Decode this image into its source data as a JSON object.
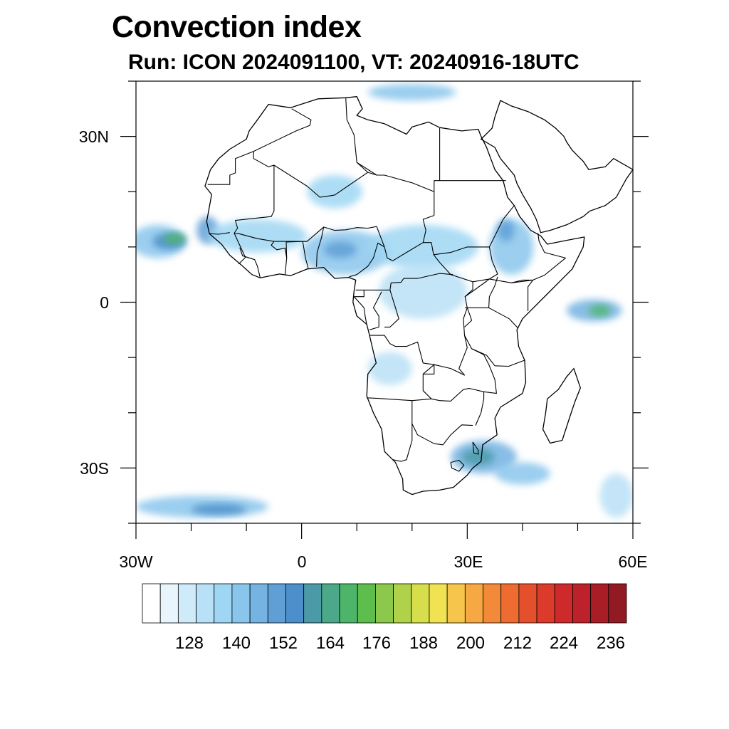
{
  "title": "Convection index",
  "subtitle": "Run: ICON 2024091100,  VT: 20240916-18UTC",
  "axes": {
    "lon_range": [
      -30,
      60
    ],
    "lat_range": [
      -40,
      40
    ],
    "x_ticks": [
      {
        "value": -30,
        "label": "30W"
      },
      {
        "value": 0,
        "label": "0"
      },
      {
        "value": 30,
        "label": "30E"
      },
      {
        "value": 60,
        "label": "60E"
      }
    ],
    "y_ticks": [
      {
        "value": 30,
        "label": "30N"
      },
      {
        "value": 0,
        "label": "0"
      },
      {
        "value": -30,
        "label": "30S"
      }
    ],
    "minor_step_deg": 10
  },
  "colorbar": {
    "min": 116,
    "step": 4,
    "colors": [
      "#ffffff",
      "#e8f5fc",
      "#cfeaf8",
      "#b8e0f6",
      "#9fd6f3",
      "#8ac6ec",
      "#74b3e2",
      "#5f9fd6",
      "#4d8fca",
      "#4b9aa8",
      "#4ba98a",
      "#4db56a",
      "#5dbe4e",
      "#8cc84c",
      "#b0d24a",
      "#d6de4c",
      "#f0e250",
      "#f6c64c",
      "#f6a843",
      "#f28a3a",
      "#ee6c32",
      "#e5502c",
      "#dc3a2b",
      "#cf2a2b",
      "#bd222a",
      "#a81d26",
      "#921a22"
    ],
    "label_values": [
      128,
      140,
      152,
      164,
      176,
      188,
      200,
      212,
      224,
      236
    ],
    "labels": [
      "128",
      "140",
      "152",
      "164",
      "176",
      "188",
      "200",
      "212",
      "224",
      "236"
    ]
  },
  "field_blobs": [
    {
      "name": "atlantic-itcz-west",
      "lon": -26,
      "lat": 11,
      "rlon": 5,
      "rlat": 3,
      "level": 3
    },
    {
      "name": "atlantic-core",
      "lon": -24,
      "lat": 11,
      "rlon": 3,
      "rlat": 1.5,
      "level": 6
    },
    {
      "name": "atlantic-hot",
      "lon": -23,
      "lat": 11.5,
      "rlon": 2,
      "rlat": 1,
      "level": 9
    },
    {
      "name": "senegal-coast",
      "lon": -17,
      "lat": 13,
      "rlon": 2,
      "rlat": 2.5,
      "level": 5
    },
    {
      "name": "sahel-west",
      "lon": -8,
      "lat": 12,
      "rlon": 9,
      "rlat": 3,
      "level": 2
    },
    {
      "name": "sahel-central",
      "lon": 8,
      "lat": 9,
      "rlon": 8,
      "rlat": 4,
      "level": 3
    },
    {
      "name": "nigeria-core",
      "lon": 7,
      "lat": 9.5,
      "rlon": 3,
      "rlat": 1.5,
      "level": 5
    },
    {
      "name": "chad-sudan",
      "lon": 22,
      "lat": 10,
      "rlon": 10,
      "rlat": 4,
      "level": 2
    },
    {
      "name": "ethiopia",
      "lon": 38,
      "lat": 10,
      "rlon": 4,
      "rlat": 5,
      "level": 3
    },
    {
      "name": "ethiopia-core",
      "lon": 37,
      "lat": 13,
      "rlon": 1.5,
      "rlat": 2,
      "level": 5
    },
    {
      "name": "congo",
      "lon": 22,
      "lat": 2,
      "rlon": 8,
      "rlat": 5,
      "level": 1
    },
    {
      "name": "niger-north",
      "lon": 6,
      "lat": 20,
      "rlon": 5,
      "rlat": 3,
      "level": 2
    },
    {
      "name": "indian-ocean",
      "lon": 53,
      "lat": -1.5,
      "rlon": 5,
      "rlat": 2,
      "level": 4
    },
    {
      "name": "indian-ocean-core",
      "lon": 54,
      "lat": -1.5,
      "rlon": 2,
      "rlat": 1,
      "level": 9
    },
    {
      "name": "southern-band",
      "lon": 33,
      "lat": -28,
      "rlon": 6,
      "rlat": 3,
      "level": 4
    },
    {
      "name": "southern-band-core",
      "lon": 32,
      "lat": -28,
      "rlon": 3,
      "rlat": 1.5,
      "level": 7
    },
    {
      "name": "southern-band-east",
      "lon": 40,
      "lat": -31,
      "rlon": 5,
      "rlat": 2,
      "level": 3
    },
    {
      "name": "south-atlantic-front",
      "lon": -18,
      "lat": -37,
      "rlon": 12,
      "rlat": 2,
      "level": 3
    },
    {
      "name": "south-atlantic-core",
      "lon": -15,
      "lat": -37.5,
      "rlon": 5,
      "rlat": 1,
      "level": 6
    },
    {
      "name": "mediterranean",
      "lon": 20,
      "lat": 38,
      "rlon": 8,
      "rlat": 1.5,
      "level": 3
    },
    {
      "name": "angola",
      "lon": 16,
      "lat": -12,
      "rlon": 4,
      "rlat": 3,
      "level": 1
    },
    {
      "name": "far-southeast",
      "lon": 57,
      "lat": -35,
      "rlon": 3,
      "rlat": 4,
      "level": 1
    }
  ],
  "coastline": [
    [
      -17.5,
      21
    ],
    [
      -16.5,
      24
    ],
    [
      -15,
      26
    ],
    [
      -13,
      27.7
    ],
    [
      -10,
      29.5
    ],
    [
      -9.5,
      31
    ],
    [
      -8,
      33
    ],
    [
      -6,
      35.8
    ],
    [
      -2,
      35.2
    ],
    [
      3,
      36.8
    ],
    [
      8,
      37
    ],
    [
      10,
      37.2
    ],
    [
      11,
      35
    ],
    [
      10,
      33.8
    ],
    [
      12,
      33
    ],
    [
      15,
      32.3
    ],
    [
      19,
      30.4
    ],
    [
      20,
      31.7
    ],
    [
      23,
      32.6
    ],
    [
      25,
      31.6
    ],
    [
      29,
      31
    ],
    [
      32,
      31.3
    ],
    [
      32.5,
      30
    ],
    [
      33.5,
      28
    ],
    [
      35,
      24
    ],
    [
      36.5,
      22
    ],
    [
      37.3,
      19
    ],
    [
      38.5,
      17.5
    ],
    [
      39.5,
      15.5
    ],
    [
      41.5,
      13
    ],
    [
      43.3,
      12
    ],
    [
      44.5,
      10.5
    ],
    [
      48,
      11.2
    ],
    [
      51.2,
      11.8
    ],
    [
      51,
      10
    ],
    [
      49,
      6
    ],
    [
      47,
      4
    ],
    [
      45,
      2
    ],
    [
      42,
      -1
    ],
    [
      40,
      -3
    ],
    [
      39,
      -5
    ],
    [
      39.3,
      -8
    ],
    [
      40.4,
      -10.5
    ],
    [
      40.6,
      -14.5
    ],
    [
      40,
      -16.5
    ],
    [
      36,
      -19
    ],
    [
      35,
      -21
    ],
    [
      35.4,
      -24
    ],
    [
      32.8,
      -25.8
    ],
    [
      32.5,
      -28.8
    ],
    [
      31,
      -30
    ],
    [
      30,
      -31.3
    ],
    [
      27.5,
      -33.5
    ],
    [
      25,
      -34
    ],
    [
      22,
      -34.2
    ],
    [
      20,
      -34.8
    ],
    [
      18.4,
      -34
    ],
    [
      18.3,
      -32
    ],
    [
      17,
      -29
    ],
    [
      15,
      -27
    ],
    [
      14.5,
      -23
    ],
    [
      13,
      -20
    ],
    [
      11.8,
      -17
    ],
    [
      12,
      -13
    ],
    [
      13.5,
      -11
    ],
    [
      13,
      -9
    ],
    [
      12.3,
      -6
    ],
    [
      11.8,
      -4
    ],
    [
      10,
      -2.5
    ],
    [
      9.3,
      0
    ],
    [
      9.5,
      2
    ],
    [
      9.8,
      4
    ],
    [
      8.5,
      4.5
    ],
    [
      6,
      4.3
    ],
    [
      4,
      6.3
    ],
    [
      1,
      6
    ],
    [
      -2,
      4.8
    ],
    [
      -4,
      5.1
    ],
    [
      -7.5,
      4.4
    ],
    [
      -9,
      5
    ],
    [
      -11,
      6.8
    ],
    [
      -13,
      8.5
    ],
    [
      -14.5,
      10.5
    ],
    [
      -16.7,
      12.4
    ],
    [
      -17.2,
      14.6
    ],
    [
      -16.3,
      19.5
    ],
    [
      -17.5,
      21
    ]
  ],
  "madagascar": [
    [
      49.3,
      -12
    ],
    [
      50.5,
      -15.5
    ],
    [
      49.5,
      -18
    ],
    [
      48.5,
      -21
    ],
    [
      47.2,
      -25
    ],
    [
      45,
      -25.5
    ],
    [
      43.7,
      -23
    ],
    [
      44.2,
      -20
    ],
    [
      44.5,
      -17.5
    ],
    [
      46.5,
      -15.8
    ],
    [
      48,
      -13.5
    ],
    [
      49.3,
      -12
    ]
  ],
  "arabia": [
    [
      32.5,
      29.5
    ],
    [
      35,
      28
    ],
    [
      36,
      26
    ],
    [
      38.5,
      23
    ],
    [
      39,
      21.5
    ],
    [
      40,
      19.5
    ],
    [
      41.5,
      17
    ],
    [
      42.5,
      15
    ],
    [
      43.3,
      12.6
    ],
    [
      45,
      13
    ],
    [
      48,
      14
    ],
    [
      51,
      15.5
    ],
    [
      52.2,
      16.5
    ],
    [
      55,
      17.5
    ],
    [
      57,
      19
    ],
    [
      58.8,
      22.3
    ],
    [
      60,
      24
    ],
    [
      56.5,
      26
    ],
    [
      55,
      24.5
    ],
    [
      52,
      24
    ],
    [
      51,
      25.5
    ],
    [
      50,
      26.5
    ],
    [
      49,
      27.5
    ],
    [
      48,
      29
    ],
    [
      47.5,
      30
    ],
    [
      46,
      31.5
    ],
    [
      44,
      33
    ],
    [
      41,
      34.5
    ],
    [
      38,
      35.5
    ],
    [
      36,
      36.5
    ],
    [
      35,
      33.5
    ],
    [
      34.5,
      31.5
    ],
    [
      34,
      31
    ],
    [
      32.5,
      29.5
    ]
  ],
  "borders": [
    [
      [
        -17,
        21.3
      ],
      [
        -13,
        21.3
      ],
      [
        -13,
        23
      ],
      [
        -12,
        23.4
      ],
      [
        -12,
        26
      ],
      [
        -8.7,
        27.3
      ]
    ],
    [
      [
        -8.7,
        27.3
      ],
      [
        -8.7,
        26
      ],
      [
        -6,
        24.5
      ],
      [
        -5,
        24.8
      ],
      [
        -5,
        16.5
      ],
      [
        -5.5,
        15.5
      ],
      [
        -12,
        14.8
      ],
      [
        -11.6,
        13.4
      ],
      [
        -12.2,
        12.5
      ]
    ],
    [
      [
        -8.7,
        27.3
      ],
      [
        -1,
        31
      ],
      [
        1.5,
        32
      ],
      [
        1.7,
        33
      ],
      [
        -1.8,
        35
      ]
    ],
    [
      [
        -5,
        24.8
      ],
      [
        1,
        21
      ],
      [
        3.3,
        19
      ],
      [
        4.2,
        19.1
      ],
      [
        6,
        19.4
      ],
      [
        12,
        23.5
      ],
      [
        13.6,
        23
      ]
    ],
    [
      [
        8,
        37
      ],
      [
        8.2,
        33
      ],
      [
        9.5,
        30.3
      ],
      [
        10,
        25.3
      ],
      [
        12,
        23.5
      ]
    ],
    [
      [
        10,
        25.3
      ],
      [
        13.6,
        23
      ],
      [
        15,
        23
      ],
      [
        20,
        21.6
      ],
      [
        24,
        20
      ],
      [
        24,
        15.7
      ]
    ],
    [
      [
        24,
        20
      ],
      [
        24,
        22
      ],
      [
        25,
        22
      ],
      [
        31.5,
        22
      ],
      [
        37,
        22
      ]
    ],
    [
      [
        25,
        22
      ],
      [
        25,
        31.5
      ]
    ],
    [
      [
        -12.2,
        12.5
      ],
      [
        -11.4,
        12.4
      ],
      [
        -8,
        11.5
      ],
      [
        -5,
        11
      ],
      [
        -2,
        11
      ],
      [
        1,
        11
      ],
      [
        4,
        13.6
      ],
      [
        6,
        13
      ],
      [
        8,
        13.1
      ],
      [
        10,
        13.5
      ],
      [
        12,
        13.4
      ],
      [
        13.6,
        13.7
      ]
    ],
    [
      [
        4,
        13.6
      ],
      [
        3.6,
        11.7
      ],
      [
        2.8,
        9
      ],
      [
        2.7,
        6.4
      ]
    ],
    [
      [
        1.2,
        6.1
      ],
      [
        0.7,
        8
      ],
      [
        0.2,
        11
      ]
    ],
    [
      [
        -3,
        5
      ],
      [
        -2.7,
        8
      ],
      [
        -2.8,
        10.9
      ]
    ],
    [
      [
        -7.5,
        4.4
      ],
      [
        -8,
        6.5
      ],
      [
        -8.5,
        7.7
      ],
      [
        -10.7,
        8.4
      ],
      [
        -11.2,
        9.9
      ]
    ],
    [
      [
        -13,
        12.6
      ],
      [
        -15,
        12.3
      ],
      [
        -16.7,
        12.4
      ]
    ],
    [
      [
        -12.2,
        12.5
      ],
      [
        -11.4,
        10.7
      ],
      [
        -10.6,
        9
      ],
      [
        -10.2,
        8.1
      ],
      [
        -11.4,
        6.9
      ]
    ],
    [
      [
        13.6,
        13.7
      ],
      [
        15,
        10
      ],
      [
        13.8,
        10.7
      ],
      [
        13,
        8
      ],
      [
        12,
        6.5
      ],
      [
        10,
        5
      ],
      [
        8.6,
        4.6
      ]
    ],
    [
      [
        15,
        10
      ],
      [
        15.5,
        8
      ],
      [
        16.5,
        7.5
      ],
      [
        19,
        9
      ],
      [
        22,
        10.8
      ],
      [
        23.5,
        10.8
      ],
      [
        23.9,
        8.6
      ],
      [
        25,
        7.2
      ],
      [
        27,
        5
      ],
      [
        31,
        3.7
      ]
    ],
    [
      [
        22,
        10.8
      ],
      [
        22.5,
        13
      ],
      [
        22,
        15
      ],
      [
        24,
        15.7
      ]
    ],
    [
      [
        24,
        8.6
      ],
      [
        27,
        9
      ],
      [
        30,
        10
      ],
      [
        34,
        10
      ],
      [
        34.5,
        7.5
      ],
      [
        35.5,
        5.1
      ],
      [
        34,
        4.2
      ],
      [
        31,
        3.7
      ]
    ],
    [
      [
        34,
        10
      ],
      [
        36,
        14
      ],
      [
        36.5,
        15
      ],
      [
        38.5,
        17.5
      ]
    ],
    [
      [
        34,
        4.2
      ],
      [
        38,
        3.5
      ],
      [
        40,
        4
      ],
      [
        41.9,
        4
      ],
      [
        41,
        2.8
      ],
      [
        41,
        -1.6
      ]
    ],
    [
      [
        38,
        3.5
      ],
      [
        41.9,
        4
      ],
      [
        44,
        4.9
      ],
      [
        47.8,
        8
      ],
      [
        44,
        9
      ],
      [
        43,
        11
      ],
      [
        42.8,
        12.5
      ]
    ],
    [
      [
        9.8,
        2.2
      ],
      [
        11.3,
        2.2
      ],
      [
        16,
        2.2
      ],
      [
        16.2,
        3.5
      ],
      [
        18,
        3.6
      ],
      [
        18.5,
        4.3
      ],
      [
        21,
        4.3
      ],
      [
        25,
        5.2
      ],
      [
        27.4,
        5
      ]
    ],
    [
      [
        11.3,
        2.2
      ],
      [
        11.3,
        1
      ],
      [
        9.5,
        1
      ],
      [
        11.3,
        -1
      ],
      [
        11.5,
        -2.5
      ],
      [
        11.8,
        -4.1
      ]
    ],
    [
      [
        14.5,
        1.9
      ],
      [
        13,
        -1
      ],
      [
        14,
        -2.5
      ],
      [
        14,
        -4.5
      ],
      [
        12.3,
        -5
      ]
    ],
    [
      [
        16,
        2.2
      ],
      [
        17,
        -1
      ],
      [
        17.6,
        -3
      ],
      [
        16,
        -4.5
      ],
      [
        15,
        -4.5
      ]
    ],
    [
      [
        12.3,
        -6
      ],
      [
        15,
        -6
      ],
      [
        16,
        -7.5
      ],
      [
        17,
        -8
      ],
      [
        19,
        -8
      ],
      [
        21,
        -7.2
      ],
      [
        22,
        -11
      ],
      [
        24,
        -11.3
      ],
      [
        24,
        -13
      ],
      [
        22,
        -13
      ],
      [
        22,
        -16
      ],
      [
        23.5,
        -17.5
      ]
    ],
    [
      [
        11.8,
        -17.3
      ],
      [
        13.8,
        -17.4
      ],
      [
        20,
        -17.8
      ],
      [
        23.5,
        -17.5
      ],
      [
        25,
        -17.8
      ]
    ],
    [
      [
        20,
        -17.8
      ],
      [
        20,
        -22
      ],
      [
        20,
        -25
      ],
      [
        19,
        -28.5
      ],
      [
        18,
        -28.8
      ],
      [
        16.5,
        -28.5
      ]
    ],
    [
      [
        20,
        -22
      ],
      [
        21,
        -24
      ],
      [
        24,
        -25.6
      ],
      [
        25.6,
        -25.8
      ],
      [
        27,
        -24
      ],
      [
        29,
        -22.2
      ],
      [
        31,
        -22.3
      ]
    ],
    [
      [
        25,
        -17.8
      ],
      [
        27,
        -17.9
      ],
      [
        29.3,
        -15.8
      ],
      [
        30.4,
        -15.6
      ],
      [
        33,
        -16.2
      ],
      [
        33,
        -17.5
      ],
      [
        32.5,
        -20
      ],
      [
        31.5,
        -22.3
      ]
    ],
    [
      [
        22,
        -13
      ],
      [
        24,
        -11.3
      ],
      [
        27,
        -12
      ],
      [
        29.5,
        -13.2
      ],
      [
        28.5,
        -12
      ],
      [
        30,
        -8.2
      ],
      [
        29.5,
        -6
      ],
      [
        29.3,
        -3
      ],
      [
        30,
        -1
      ],
      [
        29.6,
        1
      ],
      [
        31,
        2.3
      ],
      [
        31,
        3.7
      ]
    ],
    [
      [
        29.5,
        -6
      ],
      [
        30.8,
        -8.4
      ],
      [
        33,
        -9.5
      ],
      [
        34,
        -11.5
      ],
      [
        35,
        -14
      ],
      [
        35.3,
        -16.5
      ],
      [
        33,
        -16.2
      ]
    ],
    [
      [
        30.8,
        -8.4
      ],
      [
        33.5,
        -9.6
      ],
      [
        35,
        -11.5
      ],
      [
        37.5,
        -11.6
      ],
      [
        40.4,
        -10.5
      ]
    ],
    [
      [
        29.6,
        -1
      ],
      [
        33.9,
        -1
      ],
      [
        37.6,
        -3
      ],
      [
        39.2,
        -4.7
      ]
    ],
    [
      [
        30,
        -1
      ],
      [
        30.5,
        -2.4
      ],
      [
        30.8,
        -3.3
      ],
      [
        29.5,
        -4.5
      ]
    ],
    [
      [
        29.6,
        1
      ],
      [
        31,
        2
      ],
      [
        33.5,
        3.8
      ],
      [
        34,
        4.2
      ]
    ],
    [
      [
        33.9,
        -1
      ],
      [
        34,
        1
      ],
      [
        35,
        3
      ],
      [
        35.5,
        4.6
      ]
    ],
    [
      [
        31,
        -25.3
      ],
      [
        32,
        -26.8
      ],
      [
        32,
        -27.5
      ],
      [
        31.2,
        -27.3
      ],
      [
        31,
        -25.3
      ]
    ],
    [
      [
        27,
        -29
      ],
      [
        28.5,
        -28.6
      ],
      [
        29.4,
        -29.5
      ],
      [
        28.5,
        -30.6
      ],
      [
        27.2,
        -30
      ],
      [
        27,
        -29
      ]
    ],
    [
      [
        -2.8,
        10.9
      ],
      [
        0.2,
        11
      ],
      [
        1,
        11
      ]
    ],
    [
      [
        -5,
        11
      ],
      [
        -5.5,
        10.3
      ],
      [
        -4.5,
        9.5
      ],
      [
        -3,
        9.8
      ],
      [
        -2.7,
        8
      ]
    ]
  ]
}
